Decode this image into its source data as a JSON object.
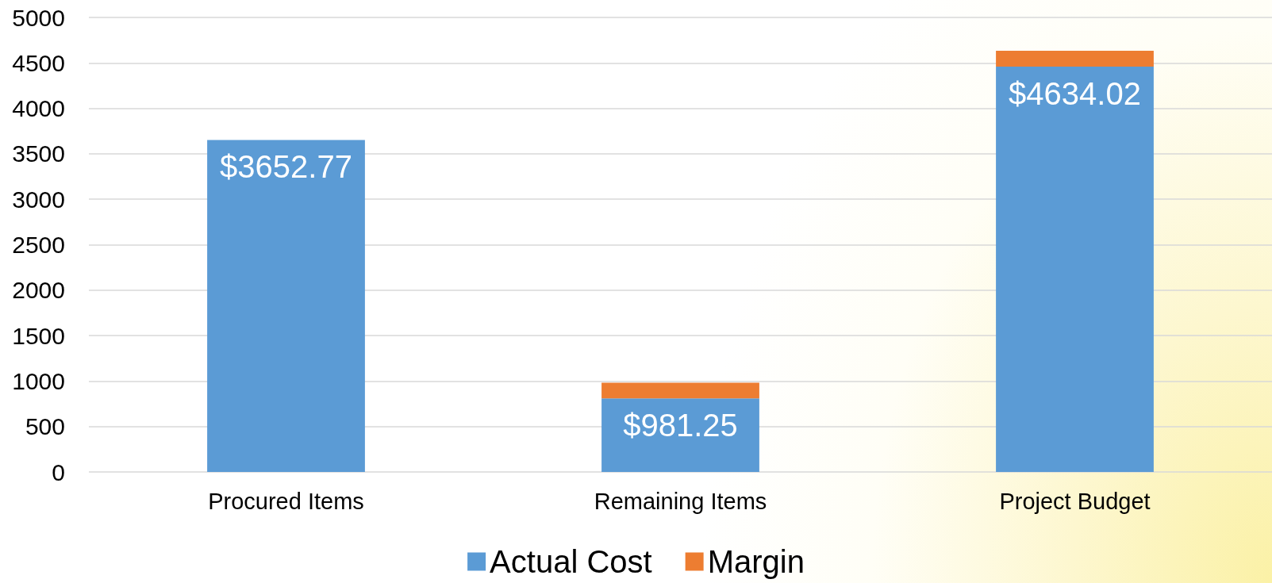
{
  "chart_data": {
    "type": "bar",
    "categories": [
      "Procured Items",
      "Remaining Items",
      "Project Budget"
    ],
    "series": [
      {
        "name": "Actual Cost",
        "color": "#5b9bd5",
        "values": [
          3652.77,
          810,
          4460
        ]
      },
      {
        "name": "Margin",
        "color": "#ed7d31",
        "values": [
          null,
          171.25,
          174.02
        ]
      }
    ],
    "stacked": true,
    "totals": [
      "$3652.77",
      "$981.25",
      "$4634.02"
    ],
    "ylim": [
      0,
      5000
    ],
    "yticks": [
      0,
      500,
      1000,
      1500,
      2000,
      2500,
      3000,
      3500,
      4000,
      4500,
      5000
    ],
    "grid": "y",
    "legend": "bottom"
  }
}
